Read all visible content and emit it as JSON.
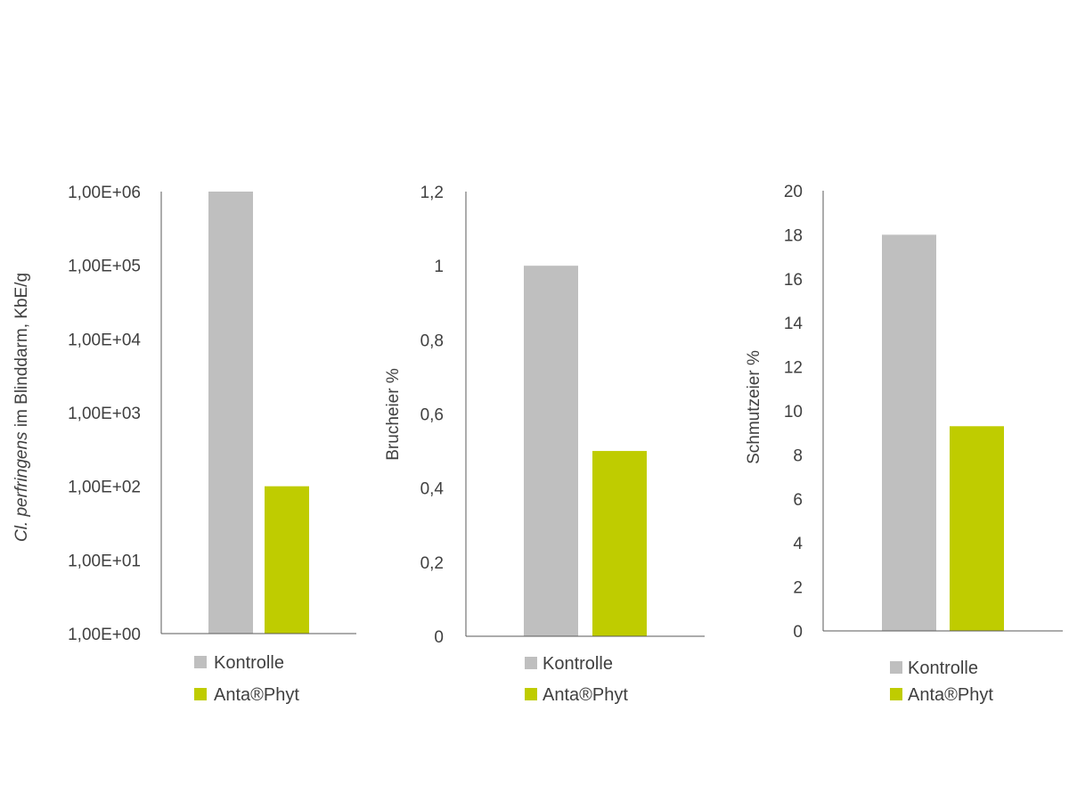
{
  "colors": {
    "kontrolle": "#BFBFBF",
    "antaphyt": "#BFCC00",
    "axis": "#595959",
    "text": "#404040"
  },
  "chart_data": [
    {
      "type": "bar",
      "scale": "log",
      "ylim": [
        1,
        1000000
      ],
      "ylabel_italic": "Cl. perfringens",
      "ylabel_rest": " im Blinddarm, KbE/g",
      "yticks": [
        "1,00E+00",
        "1,00E+01",
        "1,00E+02",
        "1,00E+03",
        "1,00E+04",
        "1,00E+05",
        "1,00E+06"
      ],
      "series": [
        {
          "name": "Kontrolle",
          "value": 1000000
        },
        {
          "name": "Anta®Phyt",
          "value": 100
        }
      ],
      "legend": [
        "Kontrolle",
        "Anta®Phyt"
      ]
    },
    {
      "type": "bar",
      "scale": "linear",
      "ylim": [
        0,
        1.2
      ],
      "ylabel": "Brucheier %",
      "yticks": [
        "0",
        "0,2",
        "0,4",
        "0,6",
        "0,8",
        "1",
        "1,2"
      ],
      "series": [
        {
          "name": "Kontrolle",
          "value": 1.0
        },
        {
          "name": "Anta®Phyt",
          "value": 0.5
        }
      ],
      "legend": [
        "Kontrolle",
        "Anta®Phyt"
      ]
    },
    {
      "type": "bar",
      "scale": "linear",
      "ylim": [
        0,
        20
      ],
      "ylabel": "Schmutzeier %",
      "yticks": [
        "0",
        "2",
        "4",
        "6",
        "8",
        "10",
        "12",
        "14",
        "16",
        "18",
        "20"
      ],
      "series": [
        {
          "name": "Kontrolle",
          "value": 18
        },
        {
          "name": "Anta®Phyt",
          "value": 9.3
        }
      ],
      "legend": [
        "Kontrolle",
        "Anta®Phyt"
      ]
    }
  ]
}
